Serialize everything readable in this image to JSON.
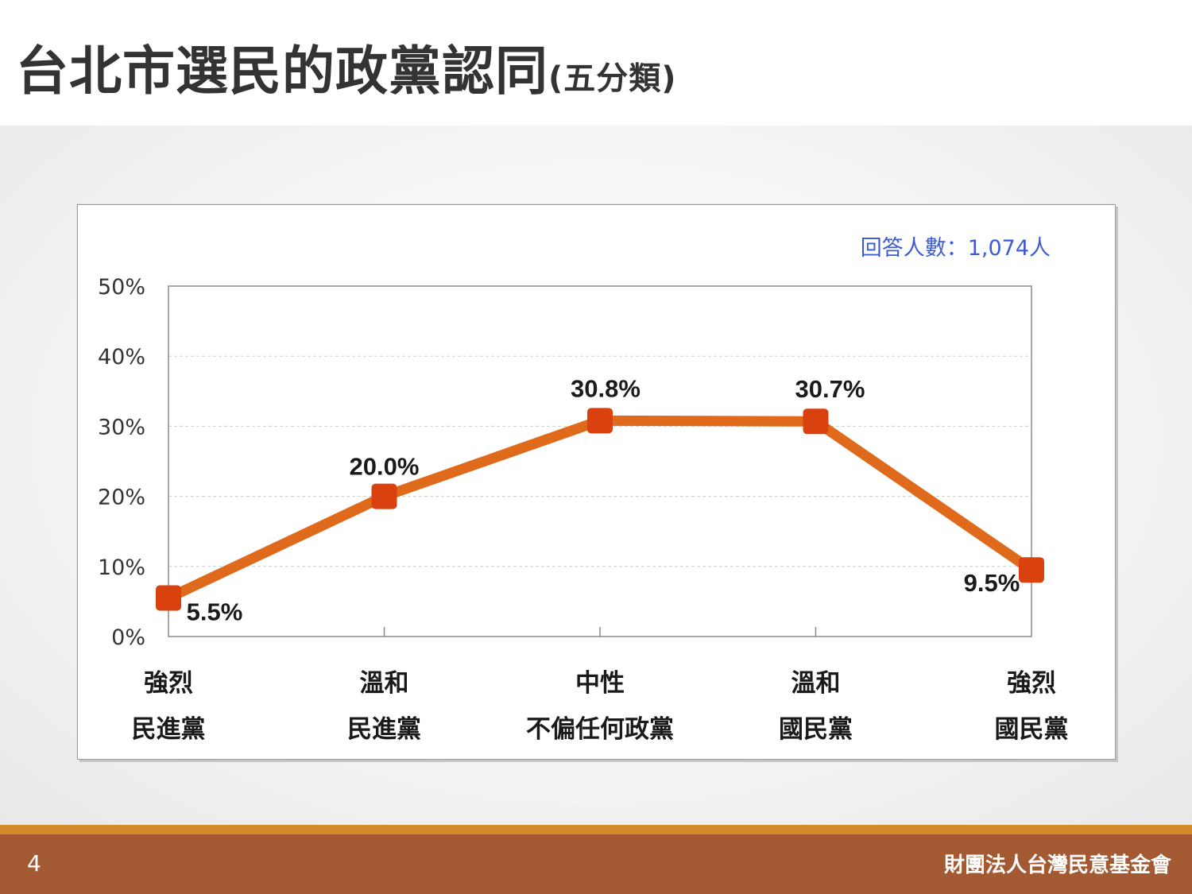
{
  "slide": {
    "title_main": "台北市選民的政黨認同",
    "title_sub": "(五分類)",
    "page_number": "4",
    "organization": "財團法人台灣民意基金會"
  },
  "chart_data": {
    "type": "line",
    "note": "回答人數：1,074人",
    "categories": [
      [
        "強烈",
        "民進黨"
      ],
      [
        "溫和",
        "民進黨"
      ],
      [
        "中性",
        "不偏任何政黨"
      ],
      [
        "溫和",
        "國民黨"
      ],
      [
        "強烈",
        "國民黨"
      ]
    ],
    "values": [
      5.5,
      20.0,
      30.8,
      30.7,
      9.5
    ],
    "value_labels": [
      "5.5%",
      "20.0%",
      "30.8%",
      "30.7%",
      "9.5%"
    ],
    "y_ticks": [
      "0%",
      "10%",
      "20%",
      "30%",
      "40%",
      "50%"
    ],
    "ylim": [
      0,
      50
    ],
    "grid": true,
    "colors": {
      "line": "#e06a1b",
      "marker": "#d9410e",
      "note": "#3d5bd9"
    }
  }
}
